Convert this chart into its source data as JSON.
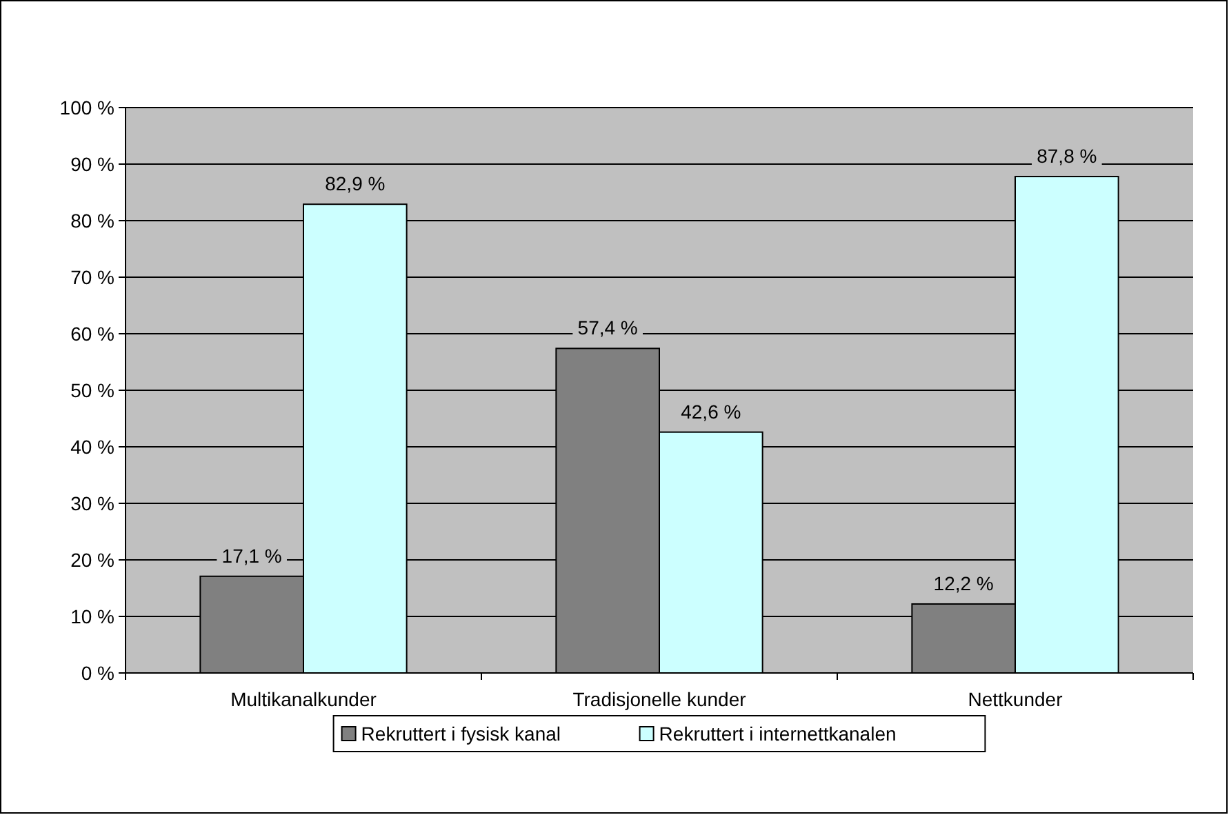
{
  "chart_data": {
    "type": "bar",
    "categories": [
      "Multikanalkunder",
      "Tradisjonelle kunder",
      "Nettkunder"
    ],
    "series": [
      {
        "name": "Rekruttert i fysisk kanal",
        "color": "#808080",
        "values": [
          17.1,
          57.4,
          12.2
        ],
        "value_labels": [
          "17,1 %",
          "57,4 %",
          "12,2 %"
        ]
      },
      {
        "name": "Rekruttert i internettkanalen",
        "color": "#ccffff",
        "values": [
          82.9,
          42.6,
          87.8
        ],
        "value_labels": [
          "82,9 %",
          "42,6 %",
          "87,8 %"
        ]
      }
    ],
    "ylim": [
      0,
      100
    ],
    "yticks": [
      {
        "value": 0,
        "label": "0 %"
      },
      {
        "value": 10,
        "label": "10 %"
      },
      {
        "value": 20,
        "label": "20 %"
      },
      {
        "value": 30,
        "label": "30 %"
      },
      {
        "value": 40,
        "label": "40 %"
      },
      {
        "value": 50,
        "label": "50 %"
      },
      {
        "value": 60,
        "label": "60 %"
      },
      {
        "value": 70,
        "label": "70 %"
      },
      {
        "value": 80,
        "label": "80 %"
      },
      {
        "value": 90,
        "label": "90 %"
      },
      {
        "value": 100,
        "label": "100 %"
      }
    ],
    "grid": "y",
    "legend": "bottom"
  }
}
